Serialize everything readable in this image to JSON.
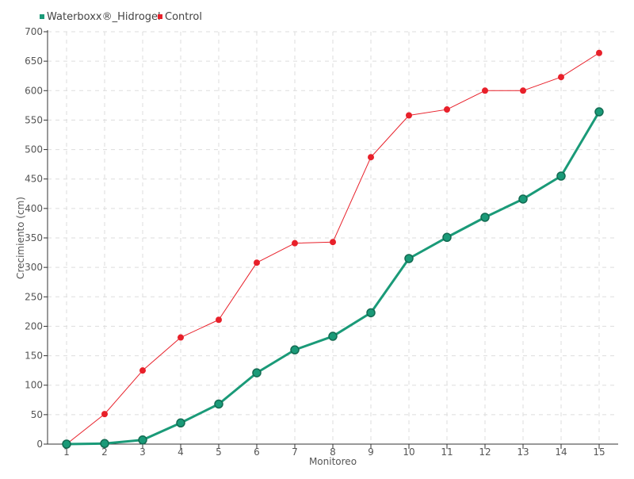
{
  "chart_data": {
    "type": "line",
    "title": "",
    "xlabel": "Monitoreo",
    "ylabel": "Crecimiento (cm)",
    "categories": [
      "1",
      "2",
      "3",
      "4",
      "5",
      "6",
      "7",
      "8",
      "9",
      "10",
      "11",
      "12",
      "13",
      "14",
      "15"
    ],
    "ylim": [
      0,
      700
    ],
    "yticks": [
      0,
      50,
      100,
      150,
      200,
      250,
      300,
      350,
      400,
      450,
      500,
      550,
      600,
      650,
      700
    ],
    "grid": true,
    "legend_position": "top-left",
    "series": [
      {
        "name": "Waterboxx®_Hidrogel",
        "color": "#1a9a78",
        "values": [
          0,
          1,
          7,
          36,
          68,
          121,
          160,
          183,
          223,
          315,
          351,
          385,
          416,
          455,
          564
        ]
      },
      {
        "name": "Control",
        "color": "#e8202a",
        "values": [
          0,
          51,
          125,
          181,
          211,
          308,
          341,
          343,
          487,
          558,
          568,
          600,
          600,
          623,
          664
        ]
      }
    ]
  }
}
